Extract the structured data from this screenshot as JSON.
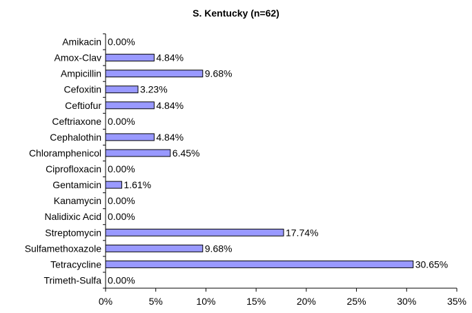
{
  "chart_data": {
    "type": "bar",
    "orientation": "horizontal",
    "title": "S. Kentucky (n=62)",
    "xlabel": "",
    "ylabel": "",
    "categories": [
      "Amikacin",
      "Amox-Clav",
      "Ampicillin",
      "Cefoxitin",
      "Ceftiofur",
      "Ceftriaxone",
      "Cephalothin",
      "Chloramphenicol",
      "Ciprofloxacin",
      "Gentamicin",
      "Kanamycin",
      "Nalidixic Acid",
      "Streptomycin",
      "Sulfamethoxazole",
      "Tetracycline",
      "Trimeth-Sulfa"
    ],
    "values": [
      0.0,
      4.84,
      9.68,
      3.23,
      4.84,
      0.0,
      4.84,
      6.45,
      0.0,
      1.61,
      0.0,
      0.0,
      17.74,
      9.68,
      30.65,
      0.0
    ],
    "value_labels": [
      "0.00%",
      "4.84%",
      "9.68%",
      "3.23%",
      "4.84%",
      "0.00%",
      "4.84%",
      "6.45%",
      "0.00%",
      "1.61%",
      "0.00%",
      "0.00%",
      "17.74%",
      "9.68%",
      "30.65%",
      "0.00%"
    ],
    "xlim": [
      0,
      35
    ],
    "x_ticks": [
      0,
      5,
      10,
      15,
      20,
      25,
      30,
      35
    ],
    "x_tick_labels": [
      "0%",
      "5%",
      "10%",
      "15%",
      "20%",
      "25%",
      "30%",
      "35%"
    ],
    "grid": false,
    "legend": "none",
    "colors": {
      "bar_fill": "#9999ff",
      "bar_stroke": "#000000",
      "axis": "#000000"
    }
  }
}
